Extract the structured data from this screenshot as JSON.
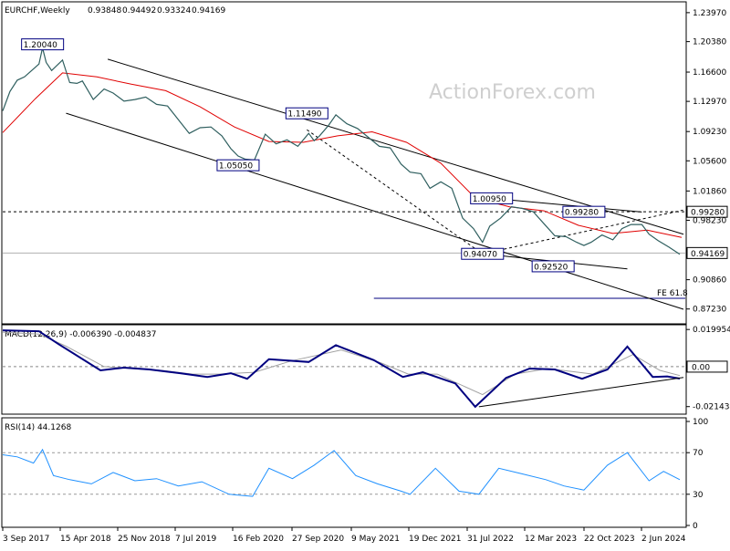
{
  "chart_data": {
    "type": "line",
    "main": {
      "title": "EURCHF,Weekly",
      "ohlc": [
        "0.93848",
        "0.94492",
        "0.93324",
        "0.94169"
      ],
      "watermark": "ActionForex.com",
      "ylim": [
        0.855,
        1.252
      ],
      "y_ticks": [
        "1.23970",
        "1.20380",
        "1.16600",
        "1.12970",
        "1.09230",
        "1.05600",
        "1.01860",
        "0.98230",
        "0.90860",
        "0.87230"
      ],
      "y_tick_values": [
        1.2397,
        1.2038,
        1.166,
        1.1297,
        1.0923,
        1.056,
        1.0186,
        0.9823,
        0.9086,
        0.8723
      ],
      "current_price": "0.94169",
      "current_price_value": 0.94169,
      "level_price": "0.99280",
      "level_price_value": 0.9928,
      "fe_level_value": 0.8855,
      "fe_label": "FE 61.8",
      "x_ticks": [
        "3 Sep 2017",
        "15 Apr 2018",
        "25 Nov 2018",
        "7 Jul 2019",
        "16 Feb 2020",
        "27 Sep 2020",
        "9 May 2021",
        "19 Dec 2021",
        "31 Jul 2022",
        "12 Mar 2023",
        "22 Oct 2023",
        "2 Jun 2024"
      ],
      "annotations": [
        {
          "text": "1.20040",
          "date": "2018-01-28",
          "value": 1.2004
        },
        {
          "text": "1.11490",
          "date": "2020-11-15",
          "value": 1.1149
        },
        {
          "text": "1.05050",
          "date": "2020-02-23",
          "value": 1.0505
        },
        {
          "text": "1.00950",
          "date": "2022-10-30",
          "value": 1.0095
        },
        {
          "text": "0.94070",
          "date": "2022-09-25",
          "value": 0.9407
        },
        {
          "text": "0.99280",
          "date": "2023-10-22",
          "value": 0.9928
        },
        {
          "text": "0.92520",
          "date": "2023-06-25",
          "value": 0.9252
        }
      ],
      "price_series": {
        "name": "",
        "points": [
          [
            "2017-08-27",
            1.118
          ],
          [
            "2017-09-24",
            1.142
          ],
          [
            "2017-10-22",
            1.156
          ],
          [
            "2017-11-19",
            1.16
          ],
          [
            "2017-12-17",
            1.168
          ],
          [
            "2018-01-14",
            1.176
          ],
          [
            "2018-01-28",
            1.196
          ],
          [
            "2018-02-11",
            1.178
          ],
          [
            "2018-03-04",
            1.168
          ],
          [
            "2018-04-15",
            1.181
          ],
          [
            "2018-05-13",
            1.153
          ],
          [
            "2018-06-10",
            1.152
          ],
          [
            "2018-07-01",
            1.155
          ],
          [
            "2018-08-12",
            1.132
          ],
          [
            "2018-09-23",
            1.145
          ],
          [
            "2018-10-28",
            1.14
          ],
          [
            "2018-12-09",
            1.13
          ],
          [
            "2019-01-20",
            1.132
          ],
          [
            "2019-03-03",
            1.135
          ],
          [
            "2019-04-14",
            1.126
          ],
          [
            "2019-05-26",
            1.124
          ],
          [
            "2019-07-07",
            1.107
          ],
          [
            "2019-08-18",
            1.09
          ],
          [
            "2019-09-29",
            1.097
          ],
          [
            "2019-11-10",
            1.098
          ],
          [
            "2019-12-22",
            1.087
          ],
          [
            "2020-01-26",
            1.071
          ],
          [
            "2020-02-23",
            1.062
          ],
          [
            "2020-03-22",
            1.058
          ],
          [
            "2020-04-26",
            1.057
          ],
          [
            "2020-06-07",
            1.089
          ],
          [
            "2020-07-19",
            1.077
          ],
          [
            "2020-08-30",
            1.082
          ],
          [
            "2020-10-11",
            1.074
          ],
          [
            "2020-11-22",
            1.09
          ],
          [
            "2020-12-13",
            1.081
          ],
          [
            "2021-01-03",
            1.087
          ],
          [
            "2021-02-07",
            1.1
          ],
          [
            "2021-03-07",
            1.113
          ],
          [
            "2021-04-18",
            1.102
          ],
          [
            "2021-05-30",
            1.096
          ],
          [
            "2021-07-11",
            1.085
          ],
          [
            "2021-08-22",
            1.074
          ],
          [
            "2021-10-03",
            1.072
          ],
          [
            "2021-11-14",
            1.052
          ],
          [
            "2021-12-19",
            1.042
          ],
          [
            "2022-01-30",
            1.04
          ],
          [
            "2022-03-06",
            1.022
          ],
          [
            "2022-04-17",
            1.03
          ],
          [
            "2022-05-29",
            1.022
          ],
          [
            "2022-07-10",
            0.985
          ],
          [
            "2022-08-21",
            0.972
          ],
          [
            "2022-09-25",
            0.955
          ],
          [
            "2022-10-23",
            0.975
          ],
          [
            "2022-12-04",
            0.985
          ],
          [
            "2023-01-15",
            0.999
          ],
          [
            "2023-02-26",
            0.997
          ],
          [
            "2023-04-09",
            0.993
          ],
          [
            "2023-05-21",
            0.978
          ],
          [
            "2023-07-02",
            0.963
          ],
          [
            "2023-08-13",
            0.962
          ],
          [
            "2023-09-24",
            0.955
          ],
          [
            "2023-10-22",
            0.951
          ],
          [
            "2023-11-19",
            0.955
          ],
          [
            "2023-12-31",
            0.964
          ],
          [
            "2024-02-11",
            0.958
          ],
          [
            "2024-03-17",
            0.972
          ],
          [
            "2024-04-21",
            0.977
          ],
          [
            "2024-06-02",
            0.977
          ],
          [
            "2024-06-30",
            0.965
          ],
          [
            "2024-08-04",
            0.957
          ],
          [
            "2024-09-15",
            0.949
          ],
          [
            "2024-10-27",
            0.94
          ]
        ]
      },
      "ma_series": {
        "name": "",
        "points": [
          [
            "2017-08-27",
            1.091
          ],
          [
            "2017-12-31",
            1.133
          ],
          [
            "2018-04-15",
            1.165
          ],
          [
            "2018-08-26",
            1.16
          ],
          [
            "2019-01-06",
            1.151
          ],
          [
            "2019-05-19",
            1.143
          ],
          [
            "2019-09-29",
            1.123
          ],
          [
            "2020-02-09",
            1.098
          ],
          [
            "2020-06-21",
            1.08
          ],
          [
            "2020-11-01",
            1.079
          ],
          [
            "2021-03-14",
            1.087
          ],
          [
            "2021-07-25",
            1.092
          ],
          [
            "2021-12-05",
            1.079
          ],
          [
            "2022-04-17",
            1.053
          ],
          [
            "2022-08-28",
            1.01
          ],
          [
            "2023-01-08",
            0.999
          ],
          [
            "2023-05-21",
            0.994
          ],
          [
            "2023-10-01",
            0.976
          ],
          [
            "2024-02-11",
            0.966
          ],
          [
            "2024-06-23",
            0.97
          ],
          [
            "2024-11-03",
            0.961
          ]
        ]
      }
    },
    "macd": {
      "title": "MACD(12,26,9) -0.006390 -0.004837",
      "ylim": [
        -0.025,
        0.022
      ],
      "y_ticks": [
        "0.019954",
        "0.00",
        "-0.021434"
      ],
      "y_tick_values": [
        0.019954,
        0.0,
        -0.021434
      ],
      "current_values": [
        "0.00",
        "-0.00"
      ],
      "main_series": {
        "name": "",
        "points": [
          [
            "2017-08-27",
            0.0195
          ],
          [
            "2018-01-14",
            0.019
          ],
          [
            "2018-04-01",
            0.012
          ],
          [
            "2018-09-09",
            -0.002
          ],
          [
            "2018-12-09",
            -0.0005
          ],
          [
            "2019-03-17",
            -0.0015
          ],
          [
            "2019-07-14",
            -0.0035
          ],
          [
            "2019-10-27",
            -0.0055
          ],
          [
            "2020-01-26",
            -0.0035
          ],
          [
            "2020-03-29",
            -0.0065
          ],
          [
            "2020-06-21",
            0.004
          ],
          [
            "2020-11-22",
            0.0025
          ],
          [
            "2021-03-07",
            0.0115
          ],
          [
            "2021-08-01",
            0.0035
          ],
          [
            "2021-11-21",
            -0.0055
          ],
          [
            "2022-02-06",
            -0.003
          ],
          [
            "2022-06-12",
            -0.009
          ],
          [
            "2022-08-28",
            -0.0215
          ],
          [
            "2022-12-25",
            -0.006
          ],
          [
            "2023-03-26",
            -0.001
          ],
          [
            "2023-07-02",
            -0.0015
          ],
          [
            "2023-10-15",
            -0.0065
          ],
          [
            "2024-01-21",
            -0.0015
          ],
          [
            "2024-04-07",
            0.0108
          ],
          [
            "2024-07-14",
            -0.0055
          ],
          [
            "2024-09-08",
            -0.0052
          ],
          [
            "2024-10-27",
            -0.0064
          ]
        ]
      },
      "signal_series": {
        "name": "",
        "points": [
          [
            "2017-08-27",
            0.0185
          ],
          [
            "2018-01-14",
            0.0175
          ],
          [
            "2018-04-29",
            0.011
          ],
          [
            "2018-09-23",
            0.0
          ],
          [
            "2019-01-06",
            -0.001
          ],
          [
            "2019-05-05",
            -0.002
          ],
          [
            "2019-09-01",
            -0.004
          ],
          [
            "2019-12-08",
            -0.004
          ],
          [
            "2020-04-26",
            -0.003
          ],
          [
            "2020-09-13",
            0.003
          ],
          [
            "2021-03-28",
            0.009
          ],
          [
            "2021-08-29",
            0.002
          ],
          [
            "2021-12-12",
            -0.004
          ],
          [
            "2022-04-03",
            -0.004
          ],
          [
            "2022-09-25",
            -0.015
          ],
          [
            "2023-01-29",
            -0.004
          ],
          [
            "2023-06-04",
            -0.001
          ],
          [
            "2023-11-26",
            -0.004
          ],
          [
            "2024-04-28",
            0.0065
          ],
          [
            "2024-08-11",
            -0.002
          ],
          [
            "2024-10-27",
            -0.0048
          ]
        ]
      }
    },
    "rsi": {
      "title": "RSI(14) 44.1268",
      "ylim": [
        0,
        100
      ],
      "y_ticks": [
        "100",
        "70",
        "30",
        "0"
      ],
      "y_tick_values": [
        100,
        70,
        30,
        0
      ],
      "series": {
        "name": "",
        "points": [
          [
            "2017-08-27",
            68
          ],
          [
            "2017-10-22",
            66
          ],
          [
            "2017-12-24",
            60
          ],
          [
            "2018-01-28",
            73
          ],
          [
            "2018-03-11",
            48
          ],
          [
            "2018-05-13",
            44
          ],
          [
            "2018-08-05",
            40
          ],
          [
            "2018-10-28",
            51
          ],
          [
            "2019-01-20",
            43
          ],
          [
            "2019-04-14",
            45
          ],
          [
            "2019-07-07",
            38
          ],
          [
            "2019-10-06",
            42
          ],
          [
            "2020-01-19",
            30
          ],
          [
            "2020-04-19",
            28
          ],
          [
            "2020-06-21",
            55
          ],
          [
            "2020-09-20",
            45
          ],
          [
            "2020-12-13",
            58
          ],
          [
            "2021-02-28",
            72
          ],
          [
            "2021-05-23",
            48
          ],
          [
            "2021-08-15",
            40
          ],
          [
            "2021-11-14",
            33
          ],
          [
            "2021-12-19",
            30
          ],
          [
            "2022-03-27",
            55
          ],
          [
            "2022-06-26",
            33
          ],
          [
            "2022-09-11",
            30
          ],
          [
            "2022-11-27",
            55
          ],
          [
            "2023-02-19",
            50
          ],
          [
            "2023-05-28",
            44
          ],
          [
            "2023-08-06",
            38
          ],
          [
            "2023-10-22",
            34
          ],
          [
            "2024-01-21",
            58
          ],
          [
            "2024-04-07",
            70
          ],
          [
            "2024-06-30",
            43
          ],
          [
            "2024-08-25",
            52
          ],
          [
            "2024-10-27",
            44
          ]
        ]
      }
    }
  },
  "colors": {
    "price": "#2f5f5f",
    "ma": "#e00000",
    "macd_main": "#000080",
    "macd_signal": "#a0a0a0",
    "rsi": "#1e90ff",
    "trend": "#000000",
    "label_bg": "#ffffff",
    "label_border": "#000080"
  }
}
